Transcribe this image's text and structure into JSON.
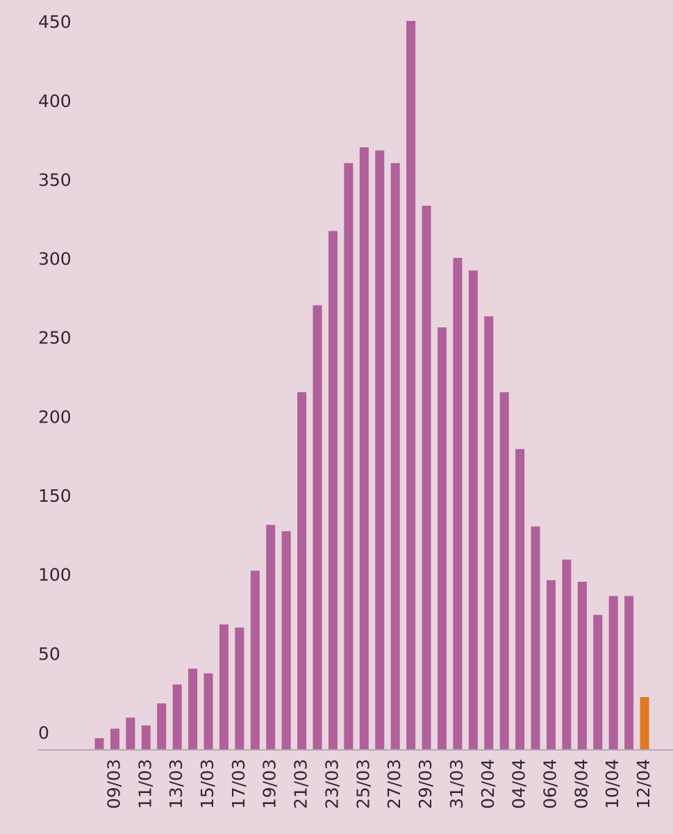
{
  "chart_data": {
    "type": "bar",
    "categories": [
      null,
      "09/03",
      null,
      "11/03",
      null,
      "13/03",
      null,
      "15/03",
      null,
      "17/03",
      null,
      "19/03",
      null,
      "21/03",
      null,
      "23/03",
      null,
      "25/03",
      null,
      "27/03",
      null,
      "29/03",
      null,
      "31/03",
      null,
      "02/04",
      null,
      "04/04",
      null,
      "06/04",
      null,
      "08/04",
      null,
      "10/04",
      null,
      "12/04"
    ],
    "values": [
      7,
      13,
      20,
      15,
      29,
      41,
      51,
      48,
      79,
      77,
      113,
      142,
      138,
      226,
      281,
      328,
      371,
      381,
      379,
      371,
      461,
      344,
      267,
      311,
      303,
      274,
      226,
      190,
      141,
      107,
      120,
      106,
      85,
      97,
      97,
      33
    ],
    "colors": [
      "#b0609a",
      "#b0609a",
      "#b0609a",
      "#b0609a",
      "#b0609a",
      "#b0609a",
      "#b0609a",
      "#b0609a",
      "#b0609a",
      "#b0609a",
      "#b0609a",
      "#b0609a",
      "#b0609a",
      "#b0609a",
      "#b0609a",
      "#b0609a",
      "#b0609a",
      "#b0609a",
      "#b0609a",
      "#b0609a",
      "#b0609a",
      "#b0609a",
      "#b0609a",
      "#b0609a",
      "#b0609a",
      "#b0609a",
      "#b0609a",
      "#b0609a",
      "#b0609a",
      "#b0609a",
      "#b0609a",
      "#b0609a",
      "#b0609a",
      "#b0609a",
      "#b0609a",
      "#e07a20"
    ],
    "ylim": [
      0,
      465
    ],
    "yticks": [
      0,
      50,
      100,
      150,
      200,
      250,
      300,
      350,
      400,
      450
    ],
    "grid": false
  }
}
